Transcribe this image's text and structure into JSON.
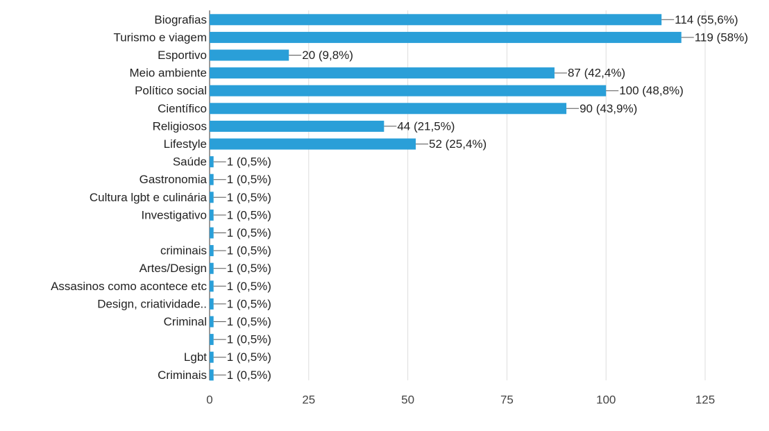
{
  "chart_data": {
    "type": "bar",
    "orientation": "horizontal",
    "categories": [
      "Biografias",
      "Turismo e viagem",
      "Esportivo",
      "Meio ambiente",
      "Político social",
      "Científico",
      "Religiosos",
      "Lifestyle",
      "Saúde",
      "Gastronomia",
      "Cultura lgbt e culinária",
      "Investigativo",
      "",
      "criminais",
      "Artes/Design",
      "Assasinos como acontece etc",
      "Design, criatividade..",
      "Criminal",
      "",
      "Lgbt",
      "Criminais"
    ],
    "values": [
      114,
      119,
      20,
      87,
      100,
      90,
      44,
      52,
      1,
      1,
      1,
      1,
      1,
      1,
      1,
      1,
      1,
      1,
      1,
      1,
      1
    ],
    "value_labels": [
      "114 (55,6%)",
      "119 (58%)",
      "20 (9,8%)",
      "87 (42,4%)",
      "100 (48,8%)",
      "90 (43,9%)",
      "44 (21,5%)",
      "52 (25,4%)",
      "1 (0,5%)",
      "1 (0,5%)",
      "1 (0,5%)",
      "1 (0,5%)",
      "1 (0,5%)",
      "1 (0,5%)",
      "1 (0,5%)",
      "1 (0,5%)",
      "1 (0,5%)",
      "1 (0,5%)",
      "1 (0,5%)",
      "1 (0,5%)",
      "1 (0,5%)"
    ],
    "xlim": [
      0,
      125
    ],
    "x_ticks": [
      0,
      25,
      50,
      75,
      100,
      125
    ],
    "x_tick_labels": [
      "0",
      "25",
      "50",
      "75",
      "100",
      "125"
    ],
    "grid": true,
    "bar_color": "#2a9fd8",
    "grid_color": "#dddddd",
    "text_color": "#222222",
    "tick_label_color": "#444444"
  }
}
